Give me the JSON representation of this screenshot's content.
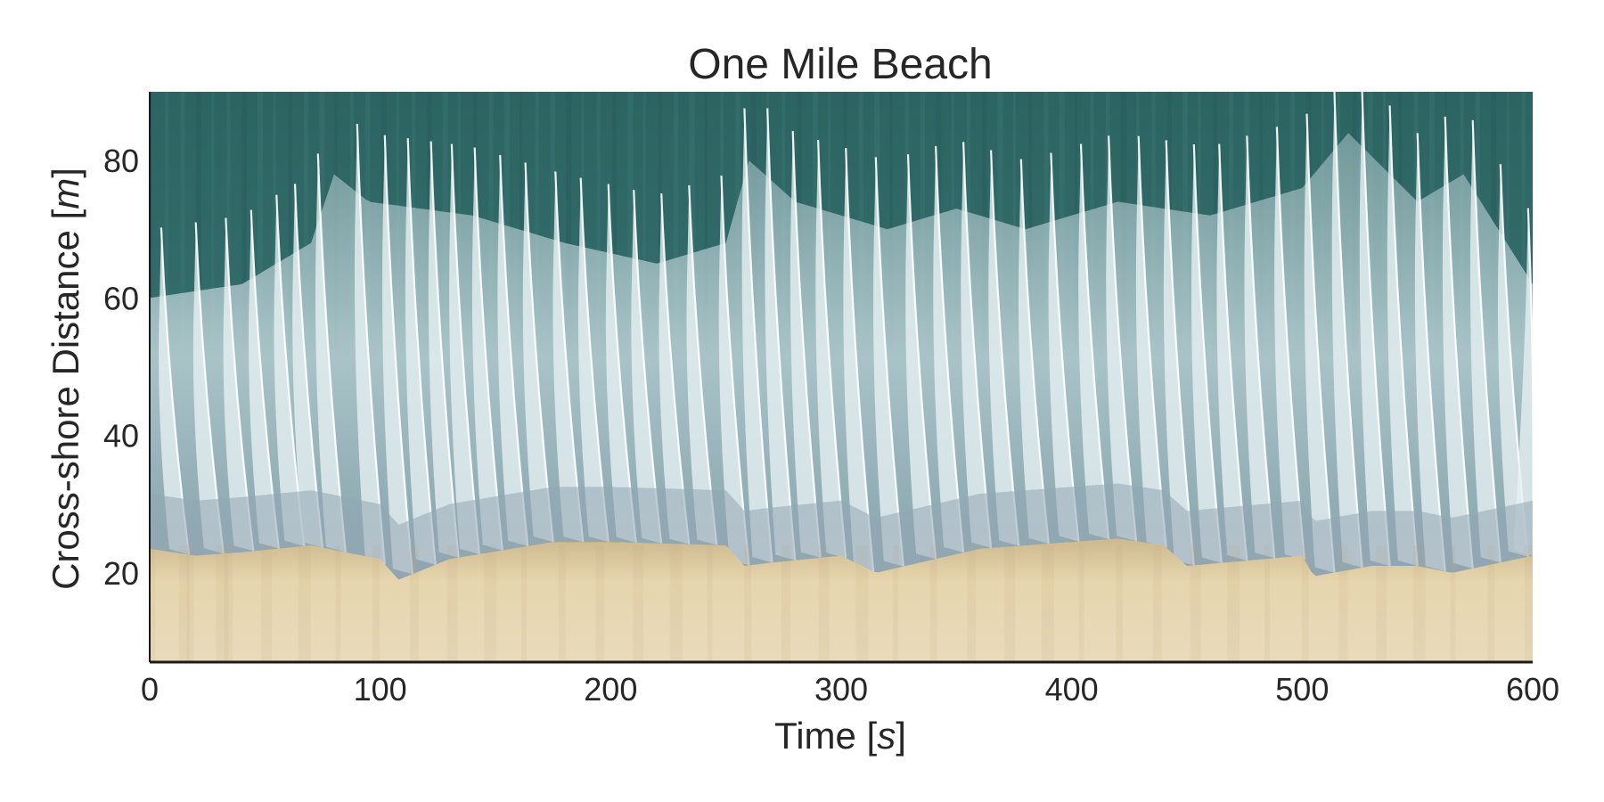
{
  "chart_data": {
    "type": "heatmap",
    "title": "One Mile Beach",
    "xlabel": "Time [s]",
    "xlabel_parts": [
      "Time [",
      "s",
      "]"
    ],
    "ylabel": "Cross-shore Distance [m]",
    "ylabel_parts": [
      "Cross-shore Distance [",
      "m",
      "]"
    ],
    "xlim": [
      0,
      600
    ],
    "ylim": [
      7,
      90
    ],
    "xticks": [
      0,
      100,
      200,
      300,
      400,
      500,
      600
    ],
    "yticks": [
      20,
      40,
      60,
      80
    ],
    "grid": false,
    "colors": {
      "deep_water": "#2f6b68",
      "foam": "#d8e6ea",
      "swash": "#8c9fae",
      "sand": "#e3d2ac",
      "wet_sand": "#b8a17e",
      "axis": "#1a1a1a",
      "text": "#262626"
    },
    "wave_crests_s": [
      5,
      20,
      33,
      44,
      55,
      63,
      73,
      90,
      102,
      112,
      122,
      131,
      141,
      152,
      163,
      176,
      187,
      199,
      210,
      222,
      234,
      248,
      258,
      268,
      279,
      290,
      302,
      315,
      329,
      341,
      353,
      365,
      378,
      391,
      404,
      416,
      429,
      441,
      453,
      464,
      476,
      489,
      502,
      514,
      526,
      538,
      550,
      562,
      574,
      586,
      598
    ],
    "shoreline_runup": [
      [
        0,
        23.5
      ],
      [
        10,
        23
      ],
      [
        20,
        22.5
      ],
      [
        40,
        23
      ],
      [
        70,
        24
      ],
      [
        100,
        22
      ],
      [
        108,
        19
      ],
      [
        130,
        22
      ],
      [
        175,
        24.5
      ],
      [
        200,
        24.5
      ],
      [
        250,
        24
      ],
      [
        258,
        21
      ],
      [
        270,
        21.5
      ],
      [
        300,
        22.5
      ],
      [
        315,
        20
      ],
      [
        360,
        23.5
      ],
      [
        420,
        25
      ],
      [
        440,
        24
      ],
      [
        450,
        21
      ],
      [
        500,
        22.5
      ],
      [
        505,
        19.5
      ],
      [
        530,
        21
      ],
      [
        550,
        21
      ],
      [
        565,
        20
      ],
      [
        600,
        22.5
      ]
    ],
    "water_edge": [
      [
        0,
        60
      ],
      [
        40,
        62
      ],
      [
        70,
        68
      ],
      [
        80,
        78
      ],
      [
        95,
        74
      ],
      [
        140,
        72
      ],
      [
        180,
        68
      ],
      [
        220,
        65
      ],
      [
        250,
        68
      ],
      [
        260,
        80
      ],
      [
        280,
        74
      ],
      [
        320,
        70
      ],
      [
        350,
        73
      ],
      [
        380,
        70
      ],
      [
        420,
        74
      ],
      [
        460,
        72
      ],
      [
        500,
        76
      ],
      [
        520,
        84
      ],
      [
        550,
        74
      ],
      [
        570,
        78
      ],
      [
        600,
        62
      ]
    ]
  }
}
